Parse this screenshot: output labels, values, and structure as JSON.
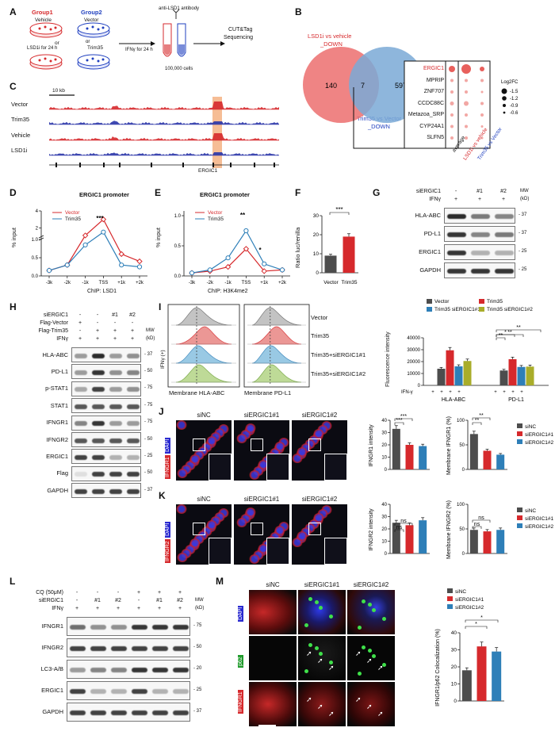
{
  "panels": {
    "A": {
      "letter": "A",
      "group1": "Group1",
      "group1_vehicle": "Vehicle",
      "or": "or",
      "group1_lsd1": "LSD1i for 24 h",
      "group2": "Group2",
      "group2_vector": "Vector",
      "group2_trim35": "Trim35",
      "ifng": "IFNγ for 24 h",
      "antibody": "anti-LSD1 antibody",
      "cells": "100,000 cells",
      "cut1": "CUT&Tag",
      "cut2": "Sequencing"
    },
    "B": {
      "letter": "B",
      "set1_l1": "LSD1i vs vehicle",
      "set1_l2": "_DOWN",
      "set2_l1": "Trim35 vs Vector",
      "set2_l2": "_DOWN",
      "n_left": "140",
      "n_mid": "7",
      "n_right": "597",
      "genes": [
        "ERGIC1",
        "MPRIP",
        "ZNF707",
        "CCDC88C",
        "Metazoa_SRP",
        "CYP24A1",
        "SLFN5"
      ],
      "columns": [
        "average",
        "LSD1i vs vehicle",
        "Trim35 vs Vector"
      ],
      "legend_title": "Log2FC",
      "legend_values": [
        "-1.5",
        "-1.2",
        "-0.9",
        "-0.6"
      ]
    },
    "C": {
      "letter": "C",
      "scale": "10 kb",
      "tracks": [
        "Vector",
        "Trim35",
        "Vehicle",
        "LSD1i"
      ],
      "gene": "ERGIC1"
    },
    "D": {
      "letter": "D",
      "title": "ERGIC1 promoter",
      "ylabel": "% input",
      "xlabel": "ChIP: LSD1",
      "series": [
        "Vector",
        "Trim35"
      ],
      "sig": "***"
    },
    "E": {
      "letter": "E",
      "title": "ERGIC1 promoter",
      "ylabel": "% input",
      "xlabel": "ChIP: H3K4me2",
      "series": [
        "Vector",
        "Trim35"
      ],
      "sig1": "**",
      "sig2": "*"
    },
    "F": {
      "letter": "F",
      "ylabel": "Ratio luc/renilla",
      "cats": [
        "Vector",
        "Trim35"
      ],
      "sig": "***"
    },
    "G": {
      "letter": "G",
      "header_row1": [
        "siERGIC1",
        "-",
        "#1",
        "#2"
      ],
      "header_row2": [
        "IFNγ",
        "+",
        "+",
        "+"
      ],
      "mw_label": "MW",
      "mw_unit": "(kD)",
      "bands": [
        "HLA-ABC",
        "PD-L1",
        "ERGIC1",
        "GAPDH"
      ],
      "mw": [
        "37",
        "37",
        "25",
        "25"
      ]
    },
    "H": {
      "letter": "H",
      "rows": [
        [
          "siERGIC1",
          "-",
          "-",
          "#1",
          "#2"
        ],
        [
          "Flag-Vector",
          "+",
          "-",
          "-",
          "-"
        ],
        [
          "Flag-Trim35",
          "-",
          "+",
          "+",
          "+"
        ],
        [
          "IFNγ",
          "+",
          "+",
          "+",
          "+"
        ]
      ],
      "mw_label": "MW",
      "mw_unit": "(kD)",
      "bands": [
        "HLA-ABC",
        "PD-L1",
        "p-STAT1",
        "STAT1",
        "IFNGR1",
        "IFNGR2",
        "ERGIC1",
        "Flag",
        "GAPDH"
      ],
      "mw": [
        "37",
        "50",
        "75",
        "75",
        "75",
        "50",
        "25",
        "50",
        "37"
      ]
    },
    "I": {
      "letter": "I",
      "ifng_axis": "IFNγ (+)",
      "rows": [
        "Vector",
        "Trim35",
        "Trim35+siERGIC1#1",
        "Trim35+siERGIC1#2"
      ],
      "x1": "Membrane HLA-ABC",
      "x2": "Membrane PD-L1",
      "legend": [
        "Vector",
        "Trim35",
        "Trim35 siERGIC1#1",
        "Trim35 siERGIC1#2"
      ],
      "ylabel": "Fluorescence intensity",
      "groups": [
        "HLA-ABC",
        "PD-L1"
      ],
      "ifn_label": "IFN-γ",
      "sig": [
        "*",
        "**",
        "**",
        "**"
      ]
    },
    "J": {
      "letter": "J",
      "cols": [
        "siNC",
        "siERGIC1#1",
        "siERGIC1#2"
      ],
      "stain1": "DAPI",
      "stain2": "IFNGR1",
      "y1": "IFNGR1 intensity",
      "y2": "Membrane IFNGR1 (%)",
      "legend": [
        "siNC",
        "siERGIC1#1",
        "siERGIC1#2"
      ],
      "sig": [
        "***",
        "***",
        "**",
        "**"
      ]
    },
    "K": {
      "letter": "K",
      "cols": [
        "siNC",
        "siERGIC1#1",
        "siERGIC1#2"
      ],
      "stain1": "DAPI",
      "stain2": "IFNGR2",
      "y1": "IFNGR2 intensity",
      "y2": "Membrane IFNGR2 (%)",
      "legend": [
        "siNC",
        "siERGIC1#1",
        "siERGIC1#2"
      ],
      "sig": [
        "ns",
        "ns",
        "ns",
        "ns"
      ]
    },
    "L": {
      "letter": "L",
      "rows": [
        [
          "CQ (50μM)",
          "-",
          "-",
          "-",
          "+",
          "+",
          "+"
        ],
        [
          "siERGIC1",
          "-",
          "#1",
          "#2",
          "-",
          "#1",
          "#2"
        ],
        [
          "IFNγ",
          "+",
          "+",
          "+",
          "+",
          "+",
          "+"
        ]
      ],
      "mw_label": "MW",
      "mw_unit": "(kD)",
      "bands": [
        "IFNGR1",
        "IFNGR2",
        "LC3-A/B",
        "ERGIC1",
        "GAPDH"
      ],
      "mw": [
        "75",
        "50",
        "20",
        "25",
        "37"
      ]
    },
    "M": {
      "letter": "M",
      "cols": [
        "siNC",
        "siERGIC1#1",
        "siERGIC1#2"
      ],
      "stains": [
        "DAPI",
        "p62",
        "IFNGR1"
      ],
      "ylabel": "IFNGR1/p62 Colocalization (%)",
      "legend": [
        "siNC",
        "siERGIC1#1",
        "siERGIC1#2"
      ],
      "sig": [
        "*",
        "*"
      ]
    }
  },
  "chart_data": [
    {
      "type": "line",
      "title": "ERGIC1 promoter",
      "xlabel": "ChIP: LSD1",
      "ylabel": "% input",
      "x": [
        "-3k",
        "-2k",
        "-1k",
        "TSS",
        "+1k",
        "+2k"
      ],
      "series": [
        {
          "name": "Vector",
          "values": [
            0.15,
            0.3,
            1.1,
            3.0,
            0.6,
            0.4
          ]
        },
        {
          "name": "Trim35",
          "values": [
            0.15,
            0.3,
            0.85,
            1.5,
            0.3,
            0.25
          ]
        }
      ],
      "yticks": [
        "0.0",
        "0.5",
        "1.0",
        "2",
        "4"
      ]
    },
    {
      "type": "line",
      "title": "ERGIC1 promoter",
      "xlabel": "ChIP: H3K4me2",
      "ylabel": "% input",
      "x": [
        "-3k",
        "-2k",
        "-1k",
        "TSS",
        "+1k",
        "+2k"
      ],
      "series": [
        {
          "name": "Vector",
          "values": [
            0.05,
            0.08,
            0.15,
            0.45,
            0.08,
            0.1
          ]
        },
        {
          "name": "Trim35",
          "values": [
            0.05,
            0.1,
            0.3,
            0.75,
            0.2,
            0.1
          ]
        }
      ],
      "yticks": [
        "0.0",
        "0.5",
        "1.0"
      ],
      "ylim": [
        0,
        1.0
      ]
    },
    {
      "type": "bar",
      "ylabel": "Ratio luc/renilla",
      "categories": [
        "Vector",
        "Trim35"
      ],
      "values": [
        9,
        19
      ],
      "yticks": [
        "0",
        "10",
        "20",
        "30"
      ],
      "ylim": [
        0,
        30
      ]
    },
    {
      "type": "bar",
      "ylabel": "Fluorescence intensity",
      "categories": [
        "HLA-ABC",
        "PD-L1"
      ],
      "series": [
        {
          "name": "Vector",
          "values": [
            14000,
            12500
          ]
        },
        {
          "name": "Trim35",
          "values": [
            29500,
            22000
          ]
        },
        {
          "name": "Trim35 siERGIC1#1",
          "values": [
            16000,
            15500
          ]
        },
        {
          "name": "Trim35 siERGIC1#2",
          "values": [
            20500,
            15800
          ]
        }
      ],
      "yticks": [
        "0",
        "10000",
        "20000",
        "30000",
        "40000"
      ],
      "ylim": [
        0,
        40000
      ]
    },
    {
      "type": "bar",
      "ylabel": "IFNGR1 intensity",
      "categories": [
        "siNC",
        "siERGIC1#1",
        "siERGIC1#2"
      ],
      "values": [
        33,
        20,
        19
      ],
      "yticks": [
        "0",
        "10",
        "20",
        "30",
        "40"
      ],
      "ylim": [
        0,
        40
      ]
    },
    {
      "type": "bar",
      "ylabel": "Membrane IFNGR1 (%)",
      "categories": [
        "siNC",
        "siERGIC1#1",
        "siERGIC1#2"
      ],
      "values": [
        72,
        38,
        30
      ],
      "yticks": [
        "0",
        "50",
        "100"
      ],
      "ylim": [
        0,
        100
      ]
    },
    {
      "type": "bar",
      "ylabel": "IFNGR2 intensity",
      "categories": [
        "siNC",
        "siERGIC1#1",
        "siERGIC1#2"
      ],
      "values": [
        25,
        23,
        27
      ],
      "yticks": [
        "0",
        "10",
        "20",
        "30",
        "40"
      ],
      "ylim": [
        0,
        40
      ]
    },
    {
      "type": "bar",
      "ylabel": "Membrane IFNGR2 (%)",
      "categories": [
        "siNC",
        "siERGIC1#1",
        "siERGIC1#2"
      ],
      "values": [
        48,
        45,
        48
      ],
      "yticks": [
        "0",
        "50",
        "100"
      ],
      "ylim": [
        0,
        100
      ]
    },
    {
      "type": "bar",
      "ylabel": "IFNGR1/p62 Colocalization (%)",
      "categories": [
        "siNC",
        "siERGIC1#1",
        "siERGIC1#2"
      ],
      "values": [
        18,
        32,
        29
      ],
      "yticks": [
        "0",
        "10",
        "20",
        "30",
        "40"
      ],
      "ylim": [
        0,
        40
      ]
    }
  ],
  "colors": {
    "red": "#d6292c",
    "blue": "#2a7bb5",
    "gray": "#4d4d4d",
    "olive": "#a9ad2a",
    "teal": "#2e7fb8"
  }
}
